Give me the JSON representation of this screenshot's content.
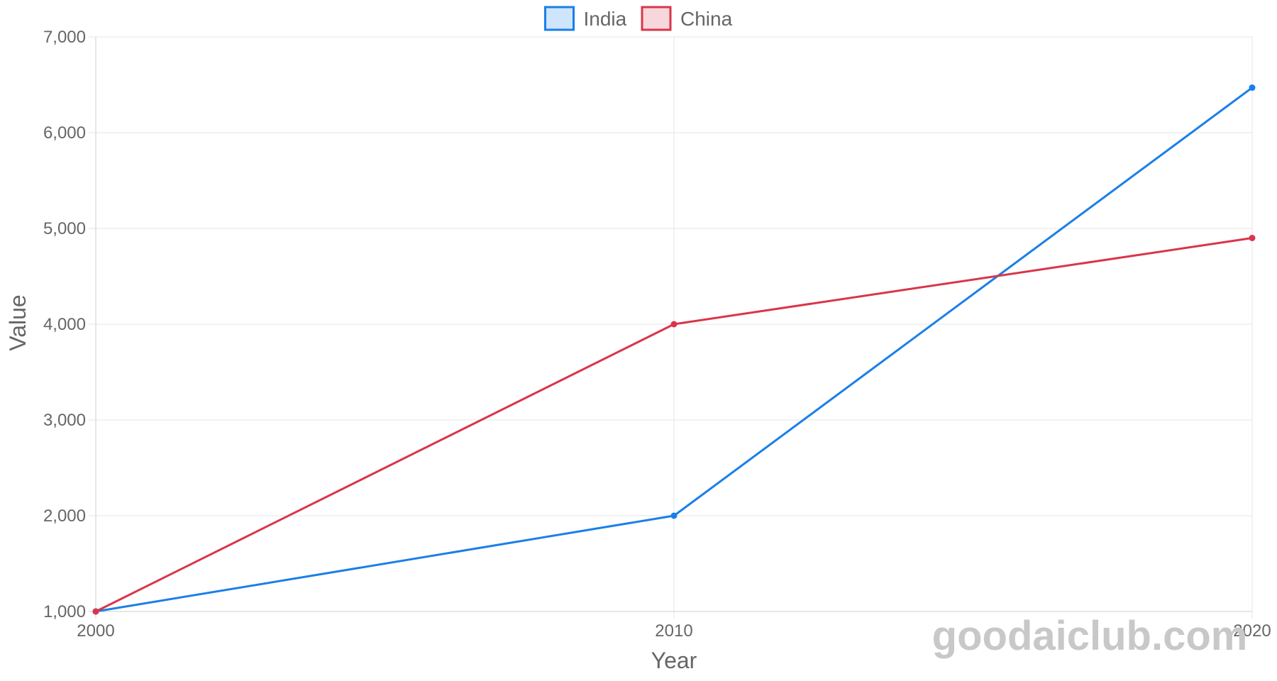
{
  "chart_data": {
    "type": "line",
    "x": [
      2000,
      2010,
      2020
    ],
    "x_tick_labels": [
      "2000",
      "2010",
      "2020"
    ],
    "xlabel": "Year",
    "ylabel": "Value",
    "ylim": [
      1000,
      7000
    ],
    "y_ticks": [
      1000,
      2000,
      3000,
      4000,
      5000,
      6000,
      7000
    ],
    "y_tick_labels": [
      "1,000",
      "2,000",
      "3,000",
      "4,000",
      "5,000",
      "6,000",
      "7,000"
    ],
    "grid": true,
    "legend_position": "top-center",
    "series": [
      {
        "name": "India",
        "values": [
          1000,
          2000,
          6470
        ],
        "color": "#1a7fe8",
        "fill": "#cfe5fb"
      },
      {
        "name": "China",
        "values": [
          1000,
          4000,
          4900
        ],
        "color": "#d9354b",
        "fill": "#f8d7dc"
      }
    ]
  },
  "watermark": {
    "text": "goodaiclub.com"
  }
}
